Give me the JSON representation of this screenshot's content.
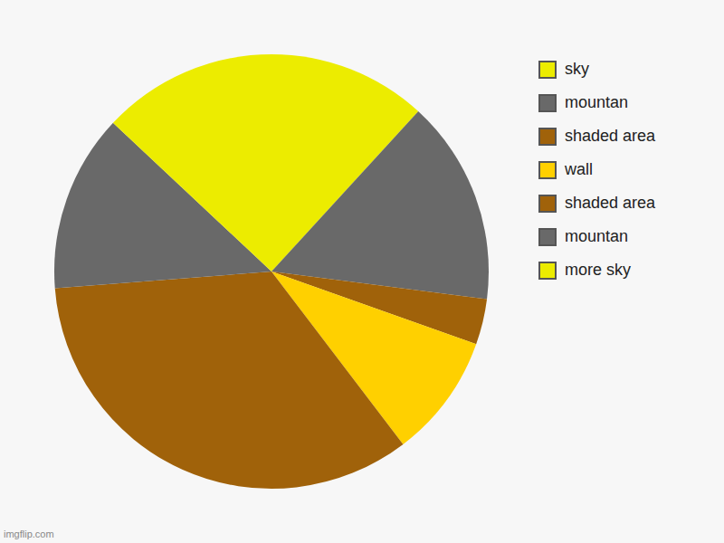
{
  "chart_data": {
    "type": "pie",
    "categories": [
      "sky",
      "mountan",
      "shaded area",
      "wall",
      "shaded area",
      "mountan",
      "more sky"
    ],
    "values": [
      11.8,
      15.2,
      3.4,
      9.2,
      34.1,
      13.2,
      13.0
    ],
    "colors": [
      "#ecec00",
      "#696969",
      "#a0620a",
      "#ffd000",
      "#a0620a",
      "#696969",
      "#ecec00"
    ],
    "legend": "top right",
    "data_labels": false,
    "annotations": [
      "imgflip.com"
    ]
  }
}
